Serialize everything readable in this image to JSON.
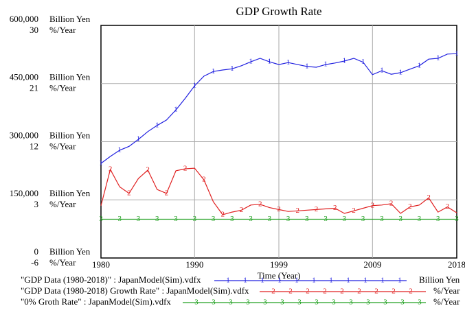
{
  "chart_data": {
    "type": "line",
    "title": "GDP Growth Rate",
    "xlabel": "Time (Year)",
    "ylabel": "Billion Yen",
    "y2label": "%/Year",
    "x": [
      1980,
      1981,
      1982,
      1983,
      1984,
      1985,
      1986,
      1987,
      1988,
      1989,
      1990,
      1991,
      1992,
      1993,
      1994,
      1995,
      1996,
      1997,
      1998,
      1999,
      2000,
      2001,
      2002,
      2003,
      2004,
      2005,
      2006,
      2007,
      2008,
      2009,
      2010,
      2011,
      2012,
      2013,
      2014,
      2015,
      2016,
      2017,
      2018
    ],
    "xlim": [
      1980,
      2018
    ],
    "xticks": [
      1980,
      1990,
      1999,
      2009,
      2018
    ],
    "ylim": [
      0,
      600000
    ],
    "yticks": [
      {
        "value": 0,
        "label": "0"
      },
      {
        "value": 150000,
        "label": "150,000"
      },
      {
        "value": 300000,
        "label": "300,000"
      },
      {
        "value": 450000,
        "label": "450,000"
      },
      {
        "value": 600000,
        "label": "600,000"
      }
    ],
    "y2lim": [
      -6,
      30
    ],
    "y2ticks": [
      -6,
      3,
      12,
      21,
      30
    ],
    "grid": true,
    "series": [
      {
        "name": "\"GDP Data (1980-2018)\" : JapanModel(Sim).vdfx",
        "color": "#2020e0",
        "marker": "1",
        "unit": "Billion Yen",
        "values": [
          244000,
          262000,
          278000,
          288000,
          306000,
          326000,
          342000,
          356000,
          382000,
          412000,
          444000,
          469000,
          481000,
          485000,
          488000,
          496000,
          506000,
          515000,
          506000,
          499000,
          504000,
          499000,
          494000,
          492000,
          499000,
          503000,
          508000,
          515000,
          505000,
          473000,
          483000,
          474000,
          478000,
          487000,
          496000,
          513000,
          515000,
          526000,
          527000
        ]
      },
      {
        "name": "\"GDP Data (1980-2018) Growth Rate\" : JapanModel(Sim).vdfx",
        "color": "#e02020",
        "marker": "2",
        "unit": "%/Year",
        "axis": "y2",
        "values": [
          2.1,
          7.7,
          5.0,
          4.0,
          6.3,
          7.6,
          4.6,
          4.0,
          7.5,
          7.8,
          7.9,
          6.1,
          2.7,
          0.7,
          1.1,
          1.4,
          2.2,
          2.3,
          1.8,
          1.5,
          1.2,
          1.3,
          1.4,
          1.5,
          1.6,
          1.7,
          0.9,
          1.3,
          1.7,
          2.1,
          2.2,
          2.4,
          0.9,
          1.9,
          2.2,
          3.3,
          1.1,
          1.9,
          1.0
        ]
      },
      {
        "name": "\"0% Groth Rate\" : JapanModel(Sim).vdfx",
        "color": "#20a020",
        "marker": "3",
        "unit": "%/Year",
        "axis": "y2",
        "values": [
          0,
          0,
          0,
          0,
          0,
          0,
          0,
          0,
          0,
          0,
          0,
          0,
          0,
          0,
          0,
          0,
          0,
          0,
          0,
          0,
          0,
          0,
          0,
          0,
          0,
          0,
          0,
          0,
          0,
          0,
          0,
          0,
          0,
          0,
          0,
          0,
          0,
          0,
          0
        ]
      }
    ]
  }
}
